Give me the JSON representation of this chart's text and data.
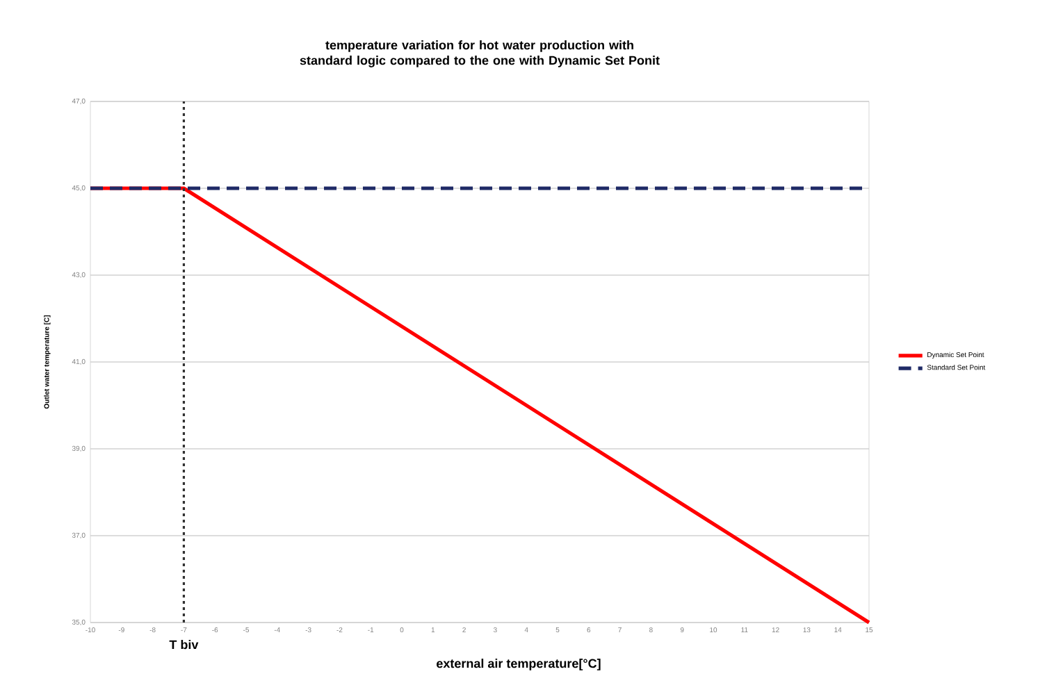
{
  "chart_data": {
    "type": "line",
    "title": "temperature variation for hot water production with  standard  logic compared to the one with Dynamic Set Ponit",
    "xlabel": "external air temperature[°C]",
    "ylabel": "Outlet water temperature [C]",
    "xlim": [
      -10,
      15
    ],
    "xticks": [
      -10,
      -9,
      -8,
      -7,
      -6,
      -5,
      -4,
      -3,
      -2,
      -1,
      0,
      1,
      2,
      3,
      4,
      5,
      6,
      7,
      8,
      9,
      10,
      11,
      12,
      13,
      14,
      15
    ],
    "ylim": [
      35,
      47
    ],
    "yticks": [
      {
        "value": 35,
        "label": "35,0"
      },
      {
        "value": 37,
        "label": "37,0"
      },
      {
        "value": 39,
        "label": "39,0"
      },
      {
        "value": 41,
        "label": "41,0"
      },
      {
        "value": 43,
        "label": "43,0"
      },
      {
        "value": 45,
        "label": "45,0"
      },
      {
        "value": 47,
        "label": "47,0"
      }
    ],
    "grid": "y",
    "legend": "right",
    "series": [
      {
        "name": "Dynamic Set Point",
        "color": "#ff0000",
        "x": [
          -10,
          -7,
          15
        ],
        "values": [
          45,
          45,
          35
        ],
        "line_style": "solid"
      },
      {
        "name": "Standard Set Point",
        "color": "#1f2a66",
        "x": [
          -10,
          15
        ],
        "values": [
          45,
          45
        ],
        "line_style": "dashed"
      }
    ],
    "ref_lines": [
      {
        "axis": "x",
        "value": -7,
        "label": "T biv",
        "color": "#333333",
        "line_style": "dotted"
      }
    ]
  }
}
